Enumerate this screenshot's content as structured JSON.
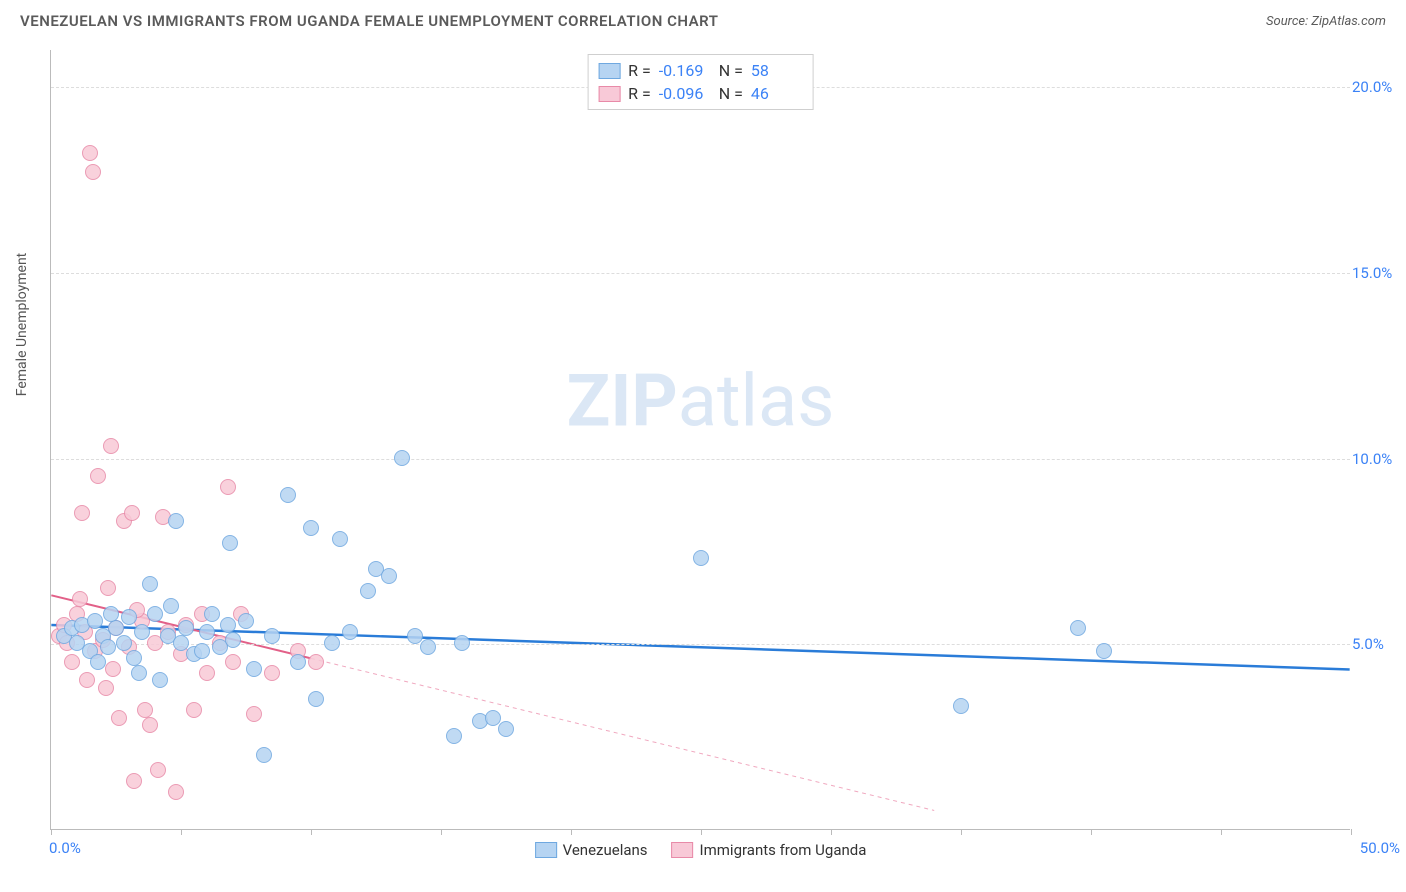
{
  "title": "VENEZUELAN VS IMMIGRANTS FROM UGANDA FEMALE UNEMPLOYMENT CORRELATION CHART",
  "source": "Source: ZipAtlas.com",
  "y_axis_label": "Female Unemployment",
  "watermark": {
    "bold": "ZIP",
    "rest": "atlas"
  },
  "chart": {
    "type": "scatter",
    "xlim": [
      0,
      50
    ],
    "ylim": [
      0,
      21
    ],
    "xtick_positions": [
      0,
      5,
      10,
      15,
      20,
      25,
      30,
      35,
      40,
      45,
      50
    ],
    "xtick_labels": {
      "first": "0.0%",
      "last": "50.0%"
    },
    "ytick_positions": [
      5,
      10,
      15,
      20
    ],
    "ytick_labels": [
      "5.0%",
      "10.0%",
      "15.0%",
      "20.0%"
    ],
    "gridline_color": "#dddddd",
    "background_color": "#ffffff",
    "point_radius": 8,
    "point_stroke_width": 1.5,
    "series": [
      {
        "name": "Venezuelans",
        "fill": "#b6d4f2",
        "stroke": "#6fa8e0",
        "r_value": "-0.169",
        "n_value": "58",
        "trend": {
          "x1": 0,
          "y1": 5.5,
          "x2": 50,
          "y2": 4.3,
          "color": "#2a7cd8",
          "width": 2.5,
          "dash": "none"
        },
        "trend_ext": null,
        "points": [
          [
            0.5,
            5.2
          ],
          [
            0.8,
            5.4
          ],
          [
            1.0,
            5.0
          ],
          [
            1.2,
            5.5
          ],
          [
            1.5,
            4.8
          ],
          [
            1.7,
            5.6
          ],
          [
            2.0,
            5.2
          ],
          [
            2.2,
            4.9
          ],
          [
            2.5,
            5.4
          ],
          [
            2.8,
            5.0
          ],
          [
            3.0,
            5.7
          ],
          [
            3.2,
            4.6
          ],
          [
            3.5,
            5.3
          ],
          [
            3.8,
            6.6
          ],
          [
            4.0,
            5.8
          ],
          [
            4.2,
            4.0
          ],
          [
            4.5,
            5.2
          ],
          [
            4.8,
            8.3
          ],
          [
            5.0,
            5.0
          ],
          [
            5.2,
            5.4
          ],
          [
            5.5,
            4.7
          ],
          [
            6.0,
            5.3
          ],
          [
            6.2,
            5.8
          ],
          [
            6.5,
            4.9
          ],
          [
            6.9,
            7.7
          ],
          [
            7.0,
            5.1
          ],
          [
            7.5,
            5.6
          ],
          [
            7.8,
            4.3
          ],
          [
            8.2,
            2.0
          ],
          [
            8.5,
            5.2
          ],
          [
            9.1,
            9.0
          ],
          [
            9.5,
            4.5
          ],
          [
            10.0,
            8.1
          ],
          [
            10.2,
            3.5
          ],
          [
            10.8,
            5.0
          ],
          [
            11.1,
            7.8
          ],
          [
            11.5,
            5.3
          ],
          [
            12.2,
            6.4
          ],
          [
            12.5,
            7.0
          ],
          [
            13.0,
            6.8
          ],
          [
            13.5,
            10.0
          ],
          [
            14.0,
            5.2
          ],
          [
            14.5,
            4.9
          ],
          [
            15.5,
            2.5
          ],
          [
            15.8,
            5.0
          ],
          [
            16.5,
            2.9
          ],
          [
            17.0,
            3.0
          ],
          [
            17.5,
            2.7
          ],
          [
            25.0,
            7.3
          ],
          [
            35.0,
            3.3
          ],
          [
            39.5,
            5.4
          ],
          [
            40.5,
            4.8
          ],
          [
            1.8,
            4.5
          ],
          [
            2.3,
            5.8
          ],
          [
            3.4,
            4.2
          ],
          [
            4.6,
            6.0
          ],
          [
            5.8,
            4.8
          ],
          [
            6.8,
            5.5
          ]
        ]
      },
      {
        "name": "Immigrants from Uganda",
        "fill": "#f8c9d7",
        "stroke": "#e88aa8",
        "r_value": "-0.096",
        "n_value": "46",
        "trend": {
          "x1": 0,
          "y1": 6.3,
          "x2": 10,
          "y2": 4.6,
          "color": "#e26088",
          "width": 2,
          "dash": "none"
        },
        "trend_ext": {
          "x1": 10,
          "y1": 4.6,
          "x2": 34,
          "y2": 0.5,
          "color": "#f0a8bf",
          "width": 1,
          "dash": "4,4"
        },
        "points": [
          [
            0.3,
            5.2
          ],
          [
            0.5,
            5.5
          ],
          [
            0.6,
            5.0
          ],
          [
            0.8,
            4.5
          ],
          [
            1.0,
            5.8
          ],
          [
            1.1,
            6.2
          ],
          [
            1.2,
            8.5
          ],
          [
            1.3,
            5.3
          ],
          [
            1.5,
            18.2
          ],
          [
            1.6,
            17.7
          ],
          [
            1.7,
            4.8
          ],
          [
            1.8,
            9.5
          ],
          [
            2.0,
            5.1
          ],
          [
            2.1,
            3.8
          ],
          [
            2.2,
            6.5
          ],
          [
            2.3,
            10.3
          ],
          [
            2.5,
            5.4
          ],
          [
            2.6,
            3.0
          ],
          [
            2.8,
            8.3
          ],
          [
            3.0,
            4.9
          ],
          [
            3.1,
            8.5
          ],
          [
            3.2,
            1.3
          ],
          [
            3.5,
            5.6
          ],
          [
            3.6,
            3.2
          ],
          [
            3.8,
            2.8
          ],
          [
            4.0,
            5.0
          ],
          [
            4.1,
            1.6
          ],
          [
            4.3,
            8.4
          ],
          [
            4.5,
            5.3
          ],
          [
            4.8,
            1.0
          ],
          [
            5.0,
            4.7
          ],
          [
            5.2,
            5.5
          ],
          [
            5.5,
            3.2
          ],
          [
            5.8,
            5.8
          ],
          [
            6.0,
            4.2
          ],
          [
            6.5,
            5.0
          ],
          [
            6.8,
            9.2
          ],
          [
            7.0,
            4.5
          ],
          [
            7.3,
            5.8
          ],
          [
            7.8,
            3.1
          ],
          [
            8.5,
            4.2
          ],
          [
            9.5,
            4.8
          ],
          [
            10.2,
            4.5
          ],
          [
            1.4,
            4.0
          ],
          [
            2.4,
            4.3
          ],
          [
            3.3,
            5.9
          ]
        ]
      }
    ]
  },
  "legend_top": {
    "r_label": "R =",
    "n_label": "N ="
  },
  "legend_bottom": {
    "items": [
      "Venezuelans",
      "Immigrants from Uganda"
    ]
  }
}
